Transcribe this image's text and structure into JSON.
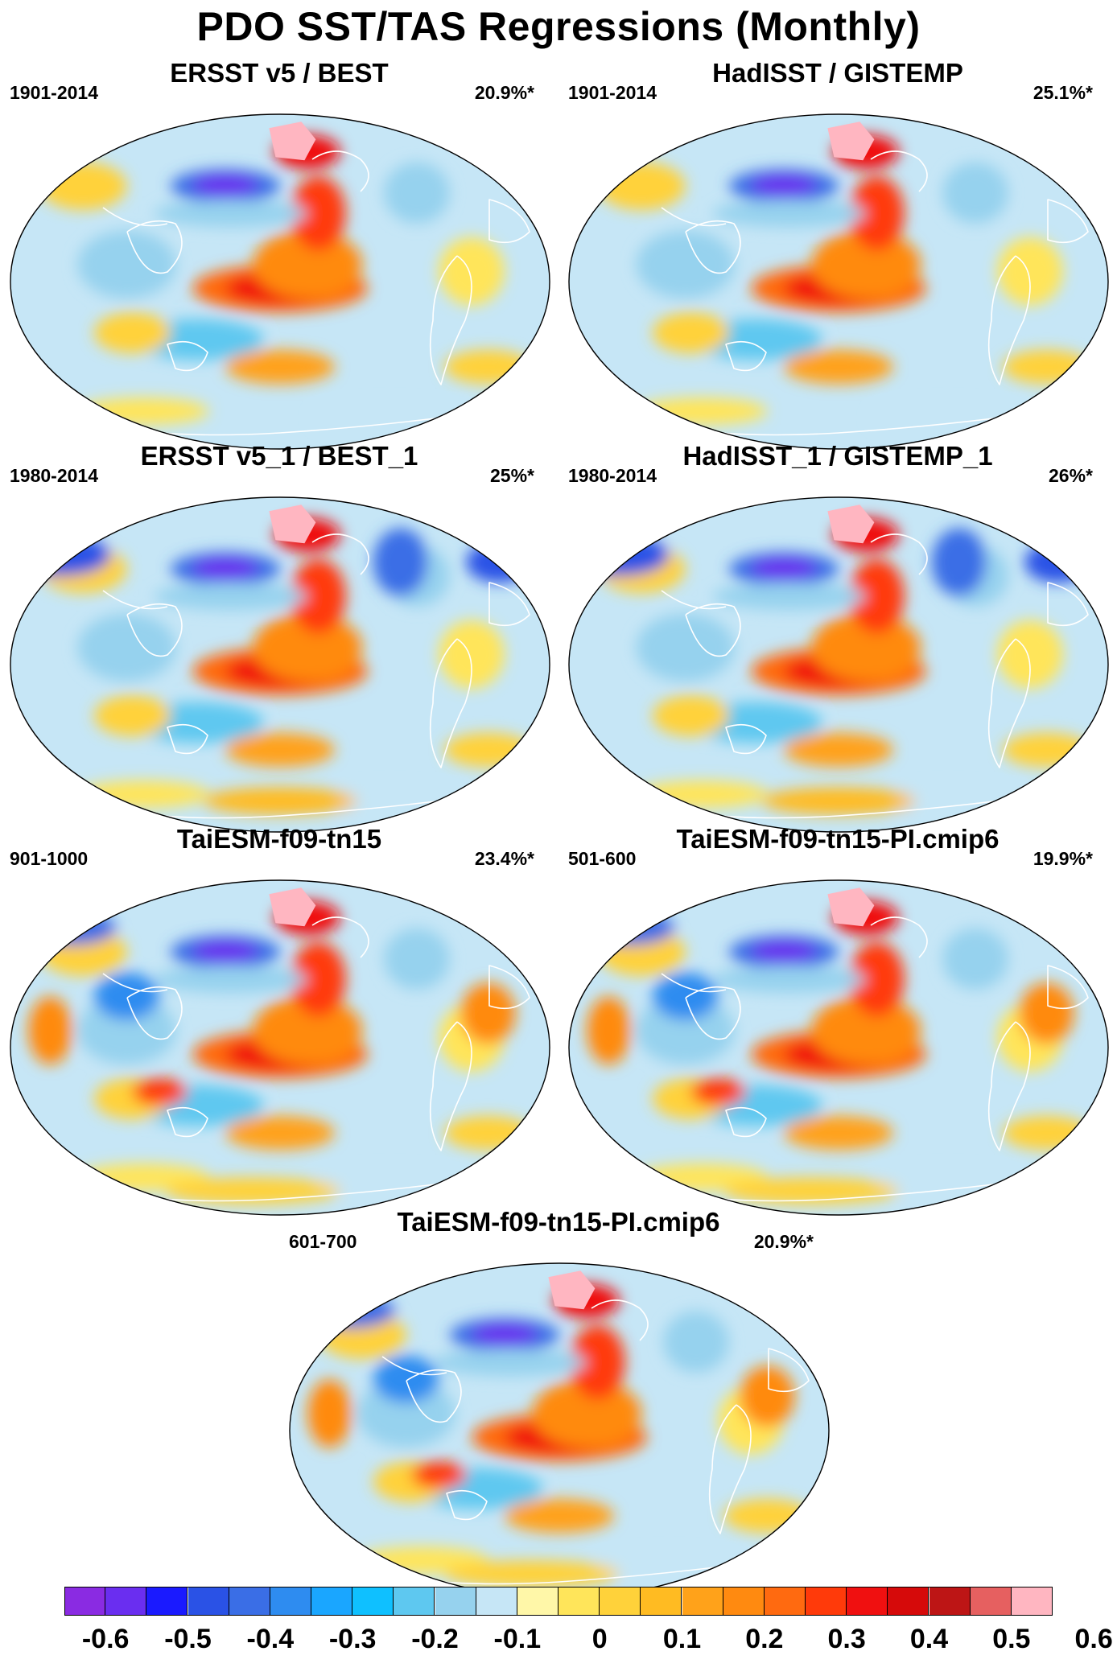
{
  "title": "PDO SST/TAS Regressions (Monthly)",
  "panels": [
    {
      "title": "ERSST v5 / BEST",
      "period": "1901-2014",
      "variance": "20.9%*",
      "variant": "obs"
    },
    {
      "title": "HadISST / GISTEMP",
      "period": "1901-2014",
      "variance": "25.1%*",
      "variant": "obs"
    },
    {
      "title": "ERSST v5_1 / BEST_1",
      "period": "1980-2014",
      "variance": "25%*",
      "variant": "obs80"
    },
    {
      "title": "HadISST_1 / GISTEMP_1",
      "period": "1980-2014",
      "variance": "26%*",
      "variant": "obs80"
    },
    {
      "title": "TaiESM-f09-tn15",
      "period": "901-1000",
      "variance": "23.4%*",
      "variant": "model"
    },
    {
      "title": "TaiESM-f09-tn15-PI.cmip6",
      "period": "501-600",
      "variance": "19.9%*",
      "variant": "model"
    },
    {
      "title": "TaiESM-f09-tn15-PI.cmip6",
      "period": "601-700",
      "variance": "20.9%*",
      "variant": "model"
    }
  ],
  "colorbar": {
    "colors": [
      "#8a2be2",
      "#6a2ef0",
      "#1a1aff",
      "#2a52e6",
      "#3a6ee6",
      "#2e8cf0",
      "#1aa6ff",
      "#0fc0ff",
      "#5ec8f0",
      "#96d2ee",
      "#c6e6f6",
      "#fff7a8",
      "#ffe55a",
      "#ffd23a",
      "#ffbb22",
      "#ffa21a",
      "#ff8a10",
      "#ff6a10",
      "#ff3a0a",
      "#f01010",
      "#d60a0a",
      "#bd1515",
      "#e66060",
      "#ffb6c1"
    ],
    "labels": [
      "-0.6",
      "-0.5",
      "-0.4",
      "-0.3",
      "-0.2",
      "-0.1",
      "0",
      "0.1",
      "0.2",
      "0.3",
      "0.4",
      "0.5",
      "0.6"
    ]
  }
}
